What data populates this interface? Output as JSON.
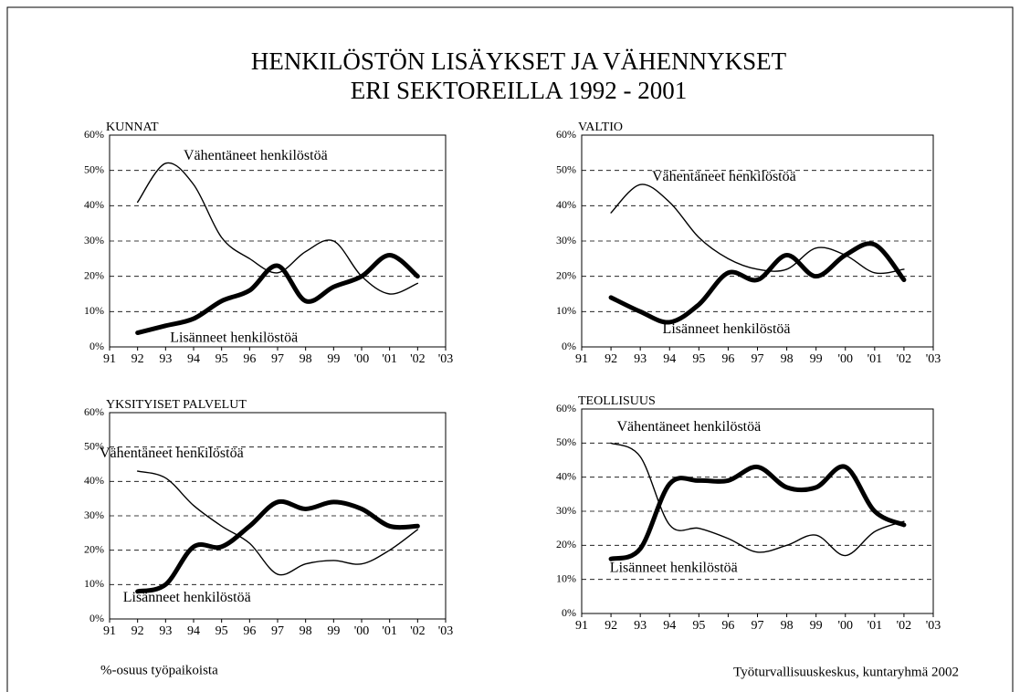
{
  "title": [
    "HENKILÖSTÖN LISÄYKSET  JA VÄHENNYKSET",
    "ERI SEKTOREILLA 1992 - 2001"
  ],
  "notes": [
    "%-osuus työpaikoista",
    "Työturvallisuuskeskus, kuntaryhmä 2002"
  ],
  "chart_data": [
    {
      "type": "line",
      "title": "KUNNAT",
      "x": [
        92,
        93,
        94,
        95,
        96,
        97,
        98,
        99,
        100,
        101,
        102
      ],
      "series": [
        {
          "name": "Vähentäneet henkilöstöä",
          "color": "#000000",
          "values": [
            41,
            52,
            46,
            31,
            25,
            21,
            27,
            30,
            20,
            15,
            18
          ]
        },
        {
          "name": "Lisänneet henkilöstöä",
          "color": "#000000",
          "values": [
            4,
            6,
            8,
            13,
            16,
            23,
            13,
            17,
            20,
            26,
            20
          ]
        }
      ],
      "xlim": [
        91,
        103
      ],
      "xticks": [
        91,
        92,
        93,
        94,
        95,
        96,
        97,
        98,
        99,
        {
          "value": 100,
          "label": "'00"
        },
        {
          "value": 101,
          "label": "'01"
        },
        {
          "value": 102,
          "label": "'02"
        },
        {
          "value": 103,
          "label": "'03"
        }
      ],
      "ylim": [
        0,
        60
      ],
      "yticks": [
        {
          "value": 0,
          "label": "0%"
        },
        {
          "value": 10,
          "label": "10%"
        },
        {
          "value": 20,
          "label": "20%"
        },
        {
          "value": 30,
          "label": "30%"
        },
        {
          "value": 40,
          "label": "40%"
        },
        {
          "value": 50,
          "label": "50%"
        },
        {
          "value": 60,
          "label": "60%"
        }
      ],
      "grid": true
    },
    {
      "type": "line",
      "title": "VALTIO",
      "x": [
        92,
        93,
        94,
        95,
        96,
        97,
        98,
        99,
        100,
        101,
        102
      ],
      "series": [
        {
          "name": "Vähentäneet henkilöstöä",
          "color": "#000000",
          "values": [
            38,
            46,
            41,
            31,
            25,
            22,
            22,
            28,
            26,
            21,
            22
          ]
        },
        {
          "name": "Lisänneet henkilöstöä",
          "color": "#000000",
          "values": [
            14,
            10,
            7,
            12,
            21,
            19,
            26,
            20,
            26,
            29,
            19
          ]
        }
      ],
      "xlim": [
        91,
        103
      ],
      "xticks": [
        91,
        92,
        93,
        94,
        95,
        96,
        97,
        98,
        99,
        {
          "value": 100,
          "label": "'00"
        },
        {
          "value": 101,
          "label": "'01"
        },
        {
          "value": 102,
          "label": "'02"
        },
        {
          "value": 103,
          "label": "'03"
        }
      ],
      "ylim": [
        0,
        60
      ],
      "yticks": [
        {
          "value": 0,
          "label": "0%"
        },
        {
          "value": 10,
          "label": "10%"
        },
        {
          "value": 20,
          "label": "20%"
        },
        {
          "value": 30,
          "label": "30%"
        },
        {
          "value": 40,
          "label": "40%"
        },
        {
          "value": 50,
          "label": "50%"
        },
        {
          "value": 60,
          "label": "60%"
        }
      ],
      "grid": true
    },
    {
      "type": "line",
      "title": "YKSITYISET PALVELUT",
      "x": [
        92,
        93,
        94,
        95,
        96,
        97,
        98,
        99,
        100,
        101,
        102
      ],
      "series": [
        {
          "name": "Vähentäneet henkilöstöä",
          "color": "#000000",
          "values": [
            43,
            41,
            33,
            27,
            22,
            13,
            16,
            17,
            16,
            20,
            26
          ]
        },
        {
          "name": "Lisänneet henkilöstöä",
          "color": "#000000",
          "values": [
            8,
            10,
            21,
            21,
            27,
            34,
            32,
            34,
            32,
            27,
            27
          ]
        }
      ],
      "xlim": [
        91,
        103
      ],
      "xticks": [
        91,
        92,
        93,
        94,
        95,
        96,
        97,
        98,
        99,
        {
          "value": 100,
          "label": "'00"
        },
        {
          "value": 101,
          "label": "'01"
        },
        {
          "value": 102,
          "label": "'02"
        },
        {
          "value": 103,
          "label": "'03"
        }
      ],
      "ylim": [
        0,
        60
      ],
      "yticks": [
        {
          "value": 0,
          "label": "0%"
        },
        {
          "value": 10,
          "label": "10%"
        },
        {
          "value": 20,
          "label": "20%"
        },
        {
          "value": 30,
          "label": "30%"
        },
        {
          "value": 40,
          "label": "40%"
        },
        {
          "value": 50,
          "label": "50%"
        },
        {
          "value": 60,
          "label": "60%"
        }
      ],
      "grid": true
    },
    {
      "type": "line",
      "title": "TEOLLISUUS",
      "x": [
        92,
        93,
        94,
        95,
        96,
        97,
        98,
        99,
        100,
        101,
        102
      ],
      "series": [
        {
          "name": "Vähentäneet henkilöstöä",
          "color": "#000000",
          "values": [
            50,
            46,
            26,
            25,
            22,
            18,
            20,
            23,
            17,
            24,
            27
          ]
        },
        {
          "name": "Lisänneet henkilöstöä",
          "color": "#000000",
          "values": [
            16,
            19,
            38,
            39,
            39,
            43,
            37,
            37,
            43,
            30,
            26
          ]
        }
      ],
      "xlim": [
        91,
        103
      ],
      "xticks": [
        91,
        92,
        93,
        94,
        95,
        96,
        97,
        98,
        99,
        {
          "value": 100,
          "label": "'00"
        },
        {
          "value": 101,
          "label": "'01"
        },
        {
          "value": 102,
          "label": "'02"
        },
        {
          "value": 103,
          "label": "'03"
        }
      ],
      "ylim": [
        0,
        60
      ],
      "yticks": [
        {
          "value": 0,
          "label": "0%"
        },
        {
          "value": 10,
          "label": "10%"
        },
        {
          "value": 20,
          "label": "20%"
        },
        {
          "value": 30,
          "label": "30%"
        },
        {
          "value": 40,
          "label": "40%"
        },
        {
          "value": 50,
          "label": "50%"
        },
        {
          "value": 60,
          "label": "60%"
        }
      ],
      "grid": true
    }
  ]
}
